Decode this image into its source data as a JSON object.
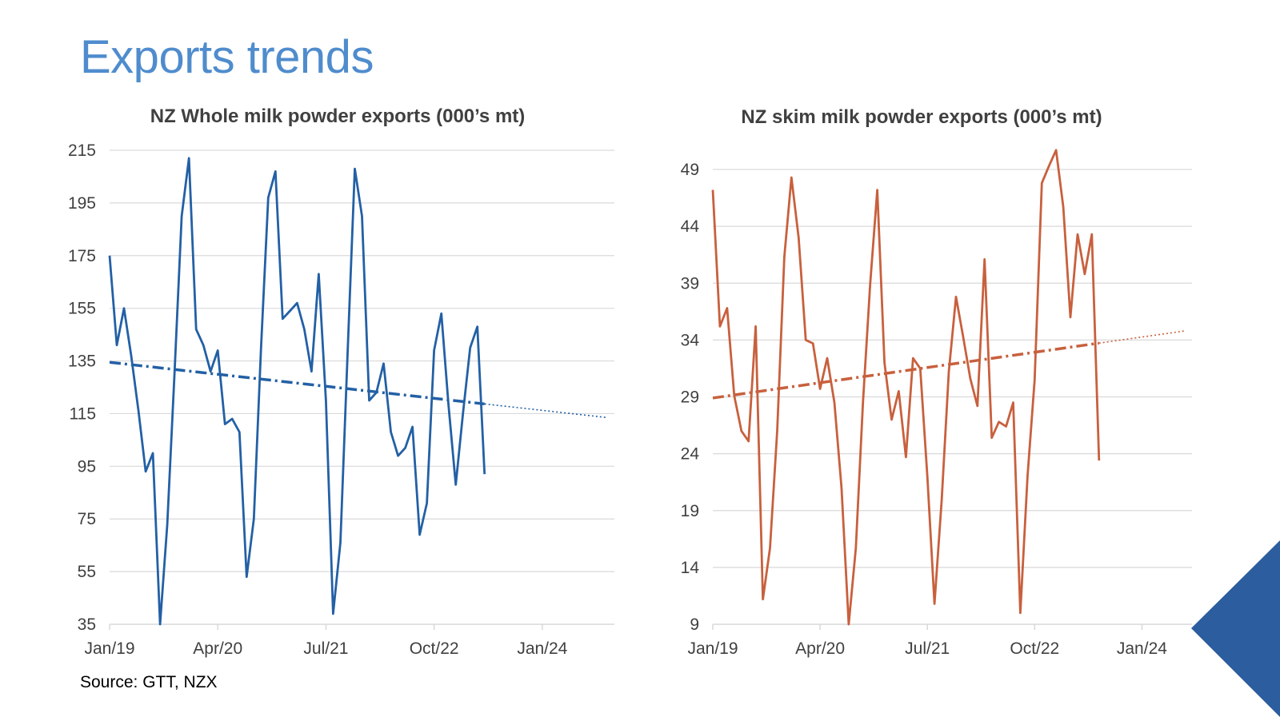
{
  "slide": {
    "title": "Exports trends",
    "source": "Source: GTT, NZX"
  },
  "colors": {
    "title": "#4f8ccd",
    "wmp": "#2360a5",
    "smp": "#c8603d",
    "grid": "#d9d9d9",
    "corner": "#2b5d9f"
  },
  "chart_data": [
    {
      "type": "line",
      "title": "NZ Whole milk powder exports (000’s mt)",
      "x_ticks": [
        "Jan/19",
        "Apr/20",
        "Jul/21",
        "Oct/22",
        "Jan/24"
      ],
      "x_tick_months": [
        0,
        15,
        30,
        45,
        60
      ],
      "x_range_months": [
        0,
        70
      ],
      "y_ticks": [
        35,
        55,
        75,
        95,
        115,
        135,
        155,
        175,
        195,
        215
      ],
      "ylim": [
        35,
        215
      ],
      "grid": "horizontal",
      "series": [
        {
          "color": "#2360a5",
          "start": "Jan/19",
          "monthly_values": [
            175,
            141,
            155,
            137,
            116,
            93,
            100,
            35,
            73,
            130,
            190,
            212,
            147,
            141,
            131,
            139,
            111,
            113,
            108,
            53,
            75,
            140,
            197,
            207,
            151,
            154,
            157,
            147,
            131,
            168,
            120,
            39,
            66,
            138,
            208,
            190,
            120,
            123,
            134,
            108,
            99,
            102,
            110,
            69,
            81,
            139,
            153,
            118,
            88,
            115,
            140,
            148,
            92
          ]
        }
      ],
      "trendline": {
        "start_value": 134.5,
        "end_value": 113.5,
        "end_month": 69
      }
    },
    {
      "type": "line",
      "title": "NZ skim milk powder exports (000’s mt)",
      "x_ticks": [
        "Jan/19",
        "Apr/20",
        "Jul/21",
        "Oct/22",
        "Jan/24"
      ],
      "x_tick_months": [
        0,
        15,
        30,
        45,
        60
      ],
      "x_range_months": [
        0,
        67
      ],
      "y_ticks": [
        9,
        14,
        19,
        24,
        29,
        34,
        39,
        44,
        49
      ],
      "ylim": [
        9,
        49
      ],
      "grid": "horizontal",
      "series": [
        {
          "color": "#c8603d",
          "start": "Jan/19",
          "monthly_values": [
            47.2,
            35.2,
            36.8,
            29.1,
            26.0,
            25.1,
            35.2,
            11.2,
            15.7,
            26.0,
            41.3,
            48.3,
            43.0,
            34.0,
            33.7,
            29.7,
            32.4,
            28.5,
            21.0,
            9.0,
            15.7,
            28.5,
            38.9,
            47.2,
            32.0,
            27.0,
            29.5,
            23.7,
            32.4,
            31.5,
            22.0,
            10.8,
            19.9,
            31.2,
            37.8,
            34.3,
            30.6,
            28.2,
            41.1,
            25.4,
            26.8,
            26.4,
            28.5,
            10.0,
            22.0,
            30.5,
            47.8,
            49.3,
            50.7,
            45.7,
            36.0,
            43.3,
            39.8,
            43.3,
            23.4
          ]
        }
      ],
      "trendline": {
        "start_value": 28.9,
        "end_value": 34.8,
        "end_month": 66
      }
    }
  ]
}
